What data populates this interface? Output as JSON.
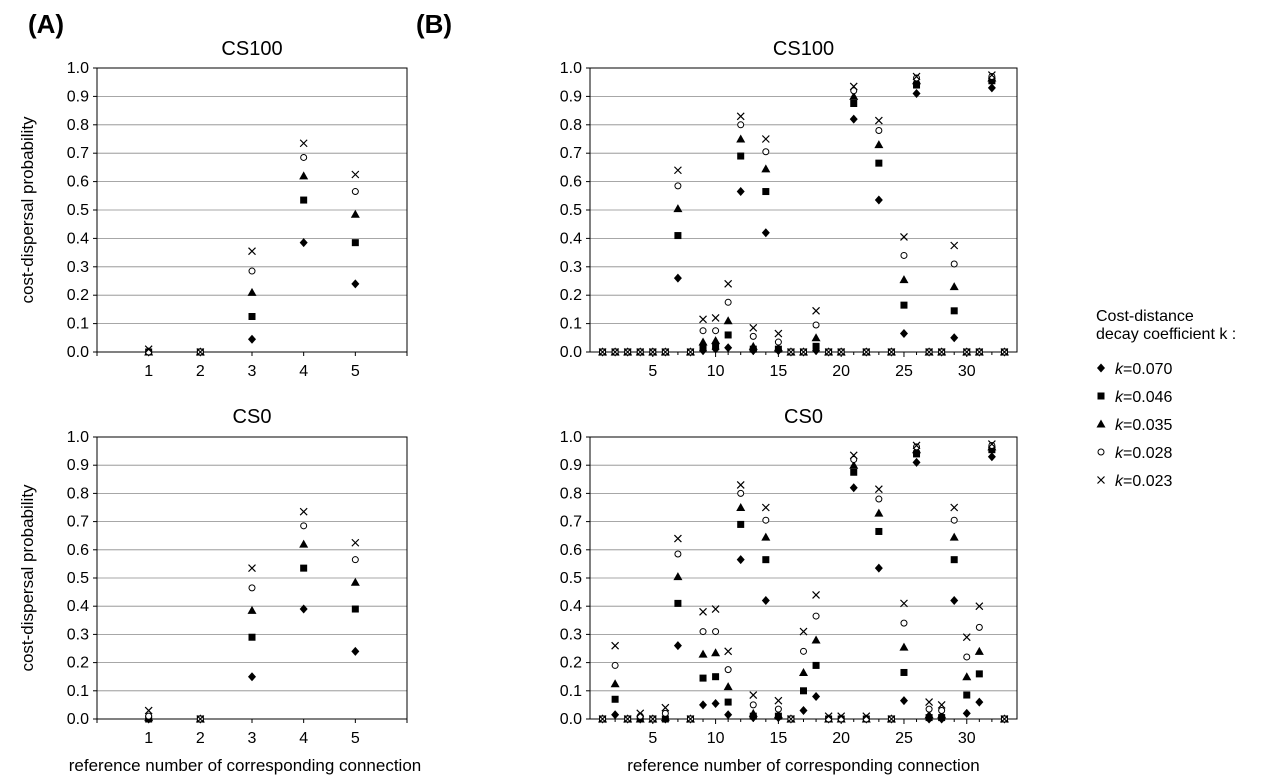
{
  "panel_labels": [
    "(A)",
    "(B)"
  ],
  "legend": {
    "title_line1": "Cost-distance",
    "title_line2": "decay coefficient k :",
    "items": [
      {
        "marker": "diamond",
        "label": "k=0.070"
      },
      {
        "marker": "square",
        "label": "k=0.046"
      },
      {
        "marker": "triangle",
        "label": "k=0.035"
      },
      {
        "marker": "circle",
        "label": "k=0.028"
      },
      {
        "marker": "cross",
        "label": "k=0.023"
      }
    ]
  },
  "chart_data": [
    {
      "id": "A-CS100",
      "type": "scatter",
      "title": "CS100",
      "panel": "(A)",
      "ylabel": "cost-dispersal probability",
      "xlabel": "",
      "ylim": [
        0,
        1
      ],
      "yticks": [
        "0.0",
        "0.1",
        "0.2",
        "0.3",
        "0.4",
        "0.5",
        "0.6",
        "0.7",
        "0.8",
        "0.9",
        "1.0"
      ],
      "xticks": [
        1,
        2,
        3,
        4,
        5
      ],
      "xlim": [
        0,
        6
      ],
      "grid": "horizontal",
      "x": [
        1,
        2,
        3,
        4,
        5
      ],
      "series": [
        {
          "name": "k=0.070",
          "marker": "diamond",
          "values": [
            0,
            0,
            0.045,
            0.385,
            0.24
          ]
        },
        {
          "name": "k=0.046",
          "marker": "square",
          "values": [
            0,
            0,
            0.125,
            0.535,
            0.385
          ]
        },
        {
          "name": "k=0.035",
          "marker": "triangle",
          "values": [
            0,
            0,
            0.21,
            0.62,
            0.485
          ]
        },
        {
          "name": "k=0.028",
          "marker": "circle",
          "values": [
            0,
            0,
            0.285,
            0.685,
            0.565
          ]
        },
        {
          "name": "k=0.023",
          "marker": "cross",
          "values": [
            0.01,
            0,
            0.355,
            0.735,
            0.625
          ]
        }
      ]
    },
    {
      "id": "A-CS0",
      "type": "scatter",
      "title": "CS0",
      "panel": "(A)",
      "ylabel": "cost-dispersal probability",
      "xlabel": "reference number of  corresponding connection",
      "ylim": [
        0,
        1
      ],
      "yticks": [
        "0.0",
        "0.1",
        "0.2",
        "0.3",
        "0.4",
        "0.5",
        "0.6",
        "0.7",
        "0.8",
        "0.9",
        "1.0"
      ],
      "xticks": [
        1,
        2,
        3,
        4,
        5
      ],
      "xlim": [
        0,
        6
      ],
      "grid": "horizontal",
      "x": [
        1,
        2,
        3,
        4,
        5
      ],
      "series": [
        {
          "name": "k=0.070",
          "marker": "diamond",
          "values": [
            0,
            0,
            0.15,
            0.39,
            0.24
          ]
        },
        {
          "name": "k=0.046",
          "marker": "square",
          "values": [
            0,
            0,
            0.29,
            0.535,
            0.39
          ]
        },
        {
          "name": "k=0.035",
          "marker": "triangle",
          "values": [
            0.005,
            0,
            0.385,
            0.62,
            0.485
          ]
        },
        {
          "name": "k=0.028",
          "marker": "circle",
          "values": [
            0.01,
            0,
            0.465,
            0.685,
            0.565
          ]
        },
        {
          "name": "k=0.023",
          "marker": "cross",
          "values": [
            0.03,
            0,
            0.535,
            0.735,
            0.625
          ]
        }
      ]
    },
    {
      "id": "B-CS100",
      "type": "scatter",
      "title": "CS100",
      "panel": "(B)",
      "ylabel": "",
      "xlabel": "",
      "ylim": [
        0,
        1
      ],
      "yticks": [
        "0.0",
        "0.1",
        "0.2",
        "0.3",
        "0.4",
        "0.5",
        "0.6",
        "0.7",
        "0.8",
        "0.9",
        "1.0"
      ],
      "xticks": [
        5,
        10,
        15,
        20,
        25,
        30
      ],
      "xlim": [
        0,
        34
      ],
      "grid": "horizontal",
      "x": [
        1,
        2,
        3,
        4,
        5,
        6,
        7,
        8,
        9,
        10,
        11,
        12,
        13,
        14,
        15,
        16,
        17,
        18,
        19,
        20,
        21,
        22,
        23,
        24,
        25,
        26,
        27,
        28,
        29,
        30,
        31,
        32,
        33
      ],
      "series": [
        {
          "name": "k=0.070",
          "marker": "diamond",
          "values": [
            0,
            0,
            0,
            0,
            0,
            0,
            0.26,
            0,
            0.005,
            0.01,
            0.015,
            0.565,
            0.005,
            0.42,
            0.005,
            0,
            0,
            0.005,
            0,
            0,
            0.82,
            0,
            0.535,
            0,
            0.065,
            0.91,
            0,
            0,
            0.05,
            0,
            0,
            0.93,
            0
          ]
        },
        {
          "name": "k=0.046",
          "marker": "square",
          "values": [
            0,
            0,
            0,
            0,
            0,
            0,
            0.41,
            0,
            0.015,
            0.02,
            0.06,
            0.69,
            0.01,
            0.565,
            0.01,
            0,
            0,
            0.02,
            0,
            0,
            0.875,
            0,
            0.665,
            0,
            0.165,
            0.94,
            0,
            0,
            0.145,
            0,
            0,
            0.955,
            0
          ]
        },
        {
          "name": "k=0.035",
          "marker": "triangle",
          "values": [
            0,
            0,
            0,
            0,
            0,
            0,
            0.505,
            0,
            0.035,
            0.04,
            0.11,
            0.75,
            0.02,
            0.645,
            0.015,
            0,
            0,
            0.05,
            0,
            0,
            0.9,
            0,
            0.73,
            0,
            0.255,
            0.955,
            0,
            0,
            0.23,
            0,
            0,
            0.965,
            0
          ]
        },
        {
          "name": "k=0.028",
          "marker": "circle",
          "values": [
            0,
            0,
            0,
            0,
            0,
            0,
            0.585,
            0,
            0.075,
            0.075,
            0.175,
            0.8,
            0.055,
            0.705,
            0.035,
            0,
            0,
            0.095,
            0,
            0,
            0.92,
            0,
            0.78,
            0,
            0.34,
            0.965,
            0,
            0,
            0.31,
            0,
            0,
            0.97,
            0
          ]
        },
        {
          "name": "k=0.023",
          "marker": "cross",
          "values": [
            0,
            0,
            0,
            0,
            0,
            0,
            0.64,
            0,
            0.115,
            0.12,
            0.24,
            0.83,
            0.085,
            0.75,
            0.065,
            0,
            0,
            0.145,
            0,
            0,
            0.935,
            0,
            0.815,
            0,
            0.405,
            0.97,
            0,
            0,
            0.375,
            0,
            0,
            0.975,
            0
          ]
        }
      ]
    },
    {
      "id": "B-CS0",
      "type": "scatter",
      "title": "CS0",
      "panel": "(B)",
      "ylabel": "",
      "xlabel": "reference number of corresponding connection",
      "ylim": [
        0,
        1
      ],
      "yticks": [
        "0.0",
        "0.1",
        "0.2",
        "0.3",
        "0.4",
        "0.5",
        "0.6",
        "0.7",
        "0.8",
        "0.9",
        "1.0"
      ],
      "xticks": [
        5,
        10,
        15,
        20,
        25,
        30
      ],
      "xlim": [
        0,
        34
      ],
      "grid": "horizontal",
      "x": [
        1,
        2,
        3,
        4,
        5,
        6,
        7,
        8,
        9,
        10,
        11,
        12,
        13,
        14,
        15,
        16,
        17,
        18,
        19,
        20,
        21,
        22,
        23,
        24,
        25,
        26,
        27,
        28,
        29,
        30,
        31,
        32,
        33
      ],
      "series": [
        {
          "name": "k=0.070",
          "marker": "diamond",
          "values": [
            0,
            0.015,
            0,
            0,
            0,
            0,
            0.26,
            0,
            0.05,
            0.055,
            0.015,
            0.565,
            0.005,
            0.42,
            0.005,
            0,
            0.03,
            0.08,
            0,
            0,
            0.82,
            0,
            0.535,
            0,
            0.065,
            0.91,
            0,
            0,
            0.42,
            0.02,
            0.06,
            0.93,
            0
          ]
        },
        {
          "name": "k=0.046",
          "marker": "square",
          "values": [
            0,
            0.07,
            0,
            0,
            0,
            0,
            0.41,
            0,
            0.145,
            0.15,
            0.06,
            0.69,
            0.01,
            0.565,
            0.01,
            0,
            0.1,
            0.19,
            0,
            0,
            0.875,
            0,
            0.665,
            0,
            0.165,
            0.94,
            0.005,
            0.005,
            0.565,
            0.085,
            0.16,
            0.955,
            0
          ]
        },
        {
          "name": "k=0.035",
          "marker": "triangle",
          "values": [
            0,
            0.125,
            0,
            0,
            0,
            0.005,
            0.505,
            0,
            0.23,
            0.235,
            0.115,
            0.75,
            0.02,
            0.645,
            0.015,
            0,
            0.165,
            0.28,
            0,
            0,
            0.9,
            0,
            0.73,
            0,
            0.255,
            0.955,
            0.015,
            0.015,
            0.645,
            0.15,
            0.24,
            0.965,
            0
          ]
        },
        {
          "name": "k=0.028",
          "marker": "circle",
          "values": [
            0,
            0.19,
            0,
            0.01,
            0,
            0.02,
            0.585,
            0,
            0.31,
            0.31,
            0.175,
            0.8,
            0.05,
            0.705,
            0.035,
            0,
            0.24,
            0.365,
            0,
            0,
            0.92,
            0,
            0.78,
            0,
            0.34,
            0.965,
            0.035,
            0.03,
            0.705,
            0.22,
            0.325,
            0.97,
            0
          ]
        },
        {
          "name": "k=0.023",
          "marker": "cross",
          "values": [
            0,
            0.26,
            0,
            0.02,
            0,
            0.04,
            0.64,
            0,
            0.38,
            0.39,
            0.24,
            0.83,
            0.085,
            0.75,
            0.065,
            0,
            0.31,
            0.44,
            0.01,
            0.01,
            0.935,
            0.01,
            0.815,
            0,
            0.41,
            0.97,
            0.06,
            0.05,
            0.75,
            0.29,
            0.4,
            0.975,
            0
          ]
        }
      ]
    }
  ]
}
